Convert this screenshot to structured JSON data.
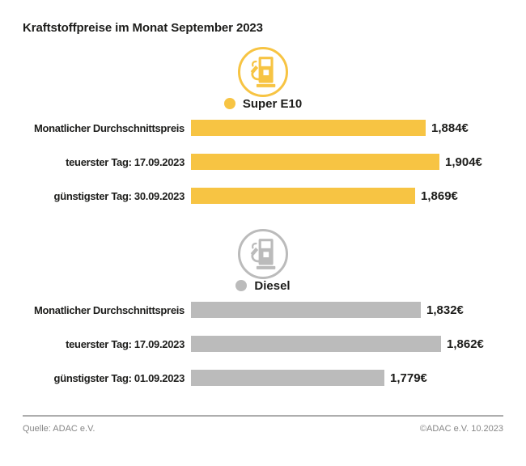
{
  "title": "Kraftstoffpreise im Monat September 2023",
  "footer": {
    "source": "Quelle: ADAC e.V.",
    "copyright": "©ADAC e.V. 10.2023"
  },
  "colors": {
    "super_e10_yellow": "#F7C443",
    "diesel_gray": "#BBBBBB",
    "text_dark": "#1D1D1B",
    "footer_gray": "#868686",
    "divider_gray": "#AEAEAE"
  },
  "chart_data": [
    {
      "type": "bar",
      "title": "Super E10",
      "icon": "fuel-pump-icon",
      "color": "#F7C443",
      "unit": "€",
      "categories": [
        "Monatlicher Durchschnittspreis",
        "teuerster Tag: 17.09.2023",
        "günstigster Tag: 30.09.2023"
      ],
      "values": [
        1.884,
        1.904,
        1.869
      ],
      "value_labels": [
        "1,884€",
        "1,904€",
        "1,869€"
      ],
      "xlim": [
        1.54,
        1.92
      ],
      "orientation": "horizontal",
      "grid": false,
      "legend_position": "top-center"
    },
    {
      "type": "bar",
      "title": "Diesel",
      "icon": "fuel-pump-icon",
      "color": "#BBBBBB",
      "unit": "€",
      "categories": [
        "Monatlicher Durchschnittspreis",
        "teuerster Tag: 17.09.2023",
        "günstigster Tag: 01.09.2023"
      ],
      "values": [
        1.832,
        1.862,
        1.779
      ],
      "value_labels": [
        "1,832€",
        "1,862€",
        "1,779€"
      ],
      "xlim": [
        1.495,
        1.875
      ],
      "orientation": "horizontal",
      "grid": false,
      "legend_position": "top-center"
    }
  ]
}
